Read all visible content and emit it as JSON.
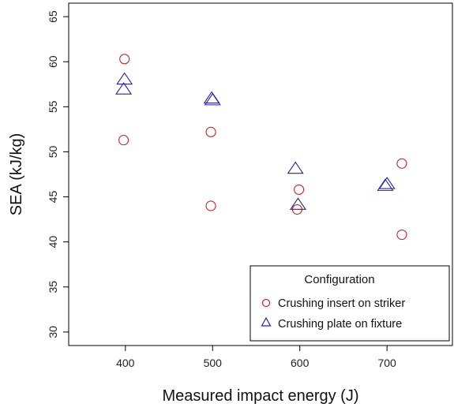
{
  "chart_data": {
    "type": "scatter",
    "xlabel": "Measured impact energy (J)",
    "ylabel": "SEA (kJ/kg)",
    "xlim": [
      335,
      775
    ],
    "ylim": [
      28.5,
      66.5
    ],
    "x_ticks": [
      400,
      500,
      600,
      700
    ],
    "y_ticks": [
      30,
      35,
      40,
      45,
      50,
      55,
      60,
      65
    ],
    "x_tick_labels": [
      "400",
      "500",
      "600",
      "700"
    ],
    "y_tick_labels": [
      "30",
      "35",
      "40",
      "45",
      "50",
      "55",
      "60",
      "65"
    ],
    "grid": false,
    "legend": {
      "title": "Configuration",
      "placement": "bottom-right",
      "entries": [
        {
          "label": "Crushing insert on striker",
          "marker": "circle",
          "color": "#cc2222"
        },
        {
          "label": "Crushing plate on fixture",
          "marker": "triangle",
          "color": "#2222aa"
        }
      ]
    },
    "series": [
      {
        "name": "Crushing insert on striker",
        "marker": "circle",
        "color": "#cc2222",
        "points": [
          {
            "x": 399,
            "y": 60.3
          },
          {
            "x": 398,
            "y": 51.3
          },
          {
            "x": 498,
            "y": 52.2
          },
          {
            "x": 498,
            "y": 44.0
          },
          {
            "x": 599,
            "y": 45.8
          },
          {
            "x": 597,
            "y": 43.6
          },
          {
            "x": 717,
            "y": 48.7
          },
          {
            "x": 717,
            "y": 40.8
          }
        ]
      },
      {
        "name": "Crushing plate on fixture",
        "marker": "triangle",
        "color": "#2222aa",
        "points": [
          {
            "x": 399,
            "y": 58.0
          },
          {
            "x": 398,
            "y": 56.9
          },
          {
            "x": 499,
            "y": 55.9
          },
          {
            "x": 500,
            "y": 55.7
          },
          {
            "x": 595,
            "y": 48.1
          },
          {
            "x": 598,
            "y": 44.1
          },
          {
            "x": 700,
            "y": 46.4
          },
          {
            "x": 698,
            "y": 46.2
          }
        ]
      }
    ]
  }
}
